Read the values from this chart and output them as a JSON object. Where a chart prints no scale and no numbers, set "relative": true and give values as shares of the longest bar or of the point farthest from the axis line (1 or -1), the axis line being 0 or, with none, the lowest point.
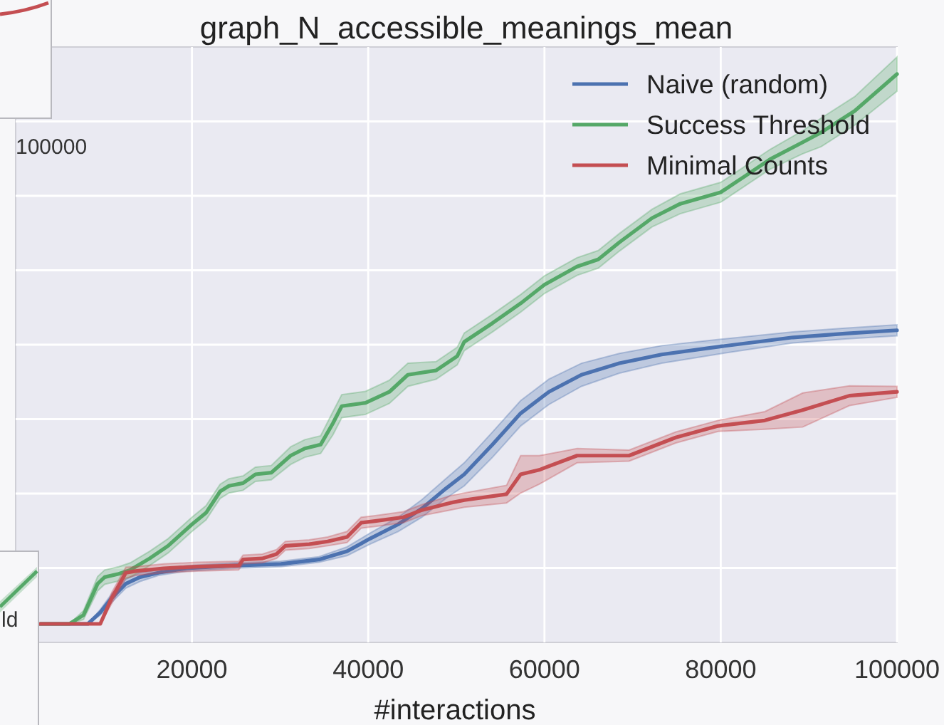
{
  "chart_data": {
    "type": "line",
    "title": "graph_N_accessible_meanings_mean",
    "xlabel": "#interactions",
    "relative": true,
    "xlim": [
      0,
      100000
    ],
    "xticks": [
      20000,
      40000,
      60000,
      80000,
      100000
    ],
    "grid": true,
    "legend": "top right",
    "annotations": [
      "100000",
      "ld"
    ],
    "series": [
      {
        "name": "Naive (random)",
        "color": "#4c72b0",
        "x": [
          2800,
          8200,
          9600,
          10900,
          12500,
          14100,
          16200,
          19400,
          24800,
          30100,
          34400,
          37600,
          40200,
          43400,
          46100,
          48800,
          50900,
          54100,
          57300,
          60500,
          64200,
          68500,
          73300,
          80200,
          88200,
          94100,
          100000
        ],
        "values": [
          0,
          0,
          0.021,
          0.047,
          0.073,
          0.085,
          0.093,
          0.101,
          0.106,
          0.109,
          0.117,
          0.132,
          0.155,
          0.181,
          0.21,
          0.246,
          0.272,
          0.326,
          0.383,
          0.422,
          0.453,
          0.474,
          0.49,
          0.505,
          0.521,
          0.528,
          0.534
        ],
        "lower": [
          0,
          0,
          0.016,
          0.039,
          0.065,
          0.077,
          0.088,
          0.096,
          0.101,
          0.104,
          0.112,
          0.124,
          0.145,
          0.168,
          0.194,
          0.228,
          0.251,
          0.303,
          0.36,
          0.399,
          0.432,
          0.456,
          0.474,
          0.492,
          0.511,
          0.518,
          0.524
        ],
        "upper": [
          0,
          0,
          0.026,
          0.055,
          0.081,
          0.093,
          0.098,
          0.106,
          0.111,
          0.114,
          0.122,
          0.14,
          0.165,
          0.194,
          0.226,
          0.264,
          0.293,
          0.349,
          0.406,
          0.445,
          0.474,
          0.492,
          0.506,
          0.518,
          0.531,
          0.538,
          0.544
        ]
      },
      {
        "name": "Success Threshold",
        "color": "#55a868",
        "x": [
          2800,
          6100,
          7700,
          9300,
          10100,
          11700,
          13000,
          15200,
          17300,
          20000,
          21600,
          23200,
          24200,
          25800,
          27200,
          29000,
          31200,
          32800,
          34600,
          36000,
          37000,
          39700,
          42400,
          44500,
          47700,
          50100,
          50900,
          54100,
          57300,
          60000,
          63700,
          66100,
          68500,
          72200,
          75400,
          80000,
          82900,
          85600,
          89300,
          91400,
          95200,
          100000
        ],
        "values": [
          0,
          0,
          0.016,
          0.073,
          0.085,
          0.091,
          0.098,
          0.119,
          0.142,
          0.181,
          0.202,
          0.241,
          0.251,
          0.256,
          0.272,
          0.275,
          0.306,
          0.319,
          0.326,
          0.365,
          0.396,
          0.402,
          0.422,
          0.453,
          0.461,
          0.487,
          0.513,
          0.547,
          0.583,
          0.617,
          0.65,
          0.663,
          0.694,
          0.738,
          0.764,
          0.785,
          0.816,
          0.845,
          0.876,
          0.894,
          0.933,
          1
        ],
        "lower": [
          0,
          0,
          0.008,
          0.06,
          0.072,
          0.078,
          0.085,
          0.106,
          0.129,
          0.168,
          0.189,
          0.228,
          0.238,
          0.243,
          0.259,
          0.262,
          0.29,
          0.303,
          0.31,
          0.344,
          0.375,
          0.381,
          0.401,
          0.432,
          0.445,
          0.471,
          0.497,
          0.531,
          0.567,
          0.601,
          0.634,
          0.647,
          0.678,
          0.722,
          0.746,
          0.767,
          0.798,
          0.827,
          0.855,
          0.868,
          0.907,
          0.969
        ],
        "upper": [
          0,
          0,
          0.024,
          0.086,
          0.098,
          0.104,
          0.111,
          0.132,
          0.155,
          0.194,
          0.215,
          0.254,
          0.264,
          0.269,
          0.285,
          0.288,
          0.322,
          0.335,
          0.342,
          0.386,
          0.417,
          0.423,
          0.443,
          0.474,
          0.477,
          0.503,
          0.529,
          0.563,
          0.599,
          0.633,
          0.666,
          0.679,
          0.71,
          0.754,
          0.782,
          0.803,
          0.834,
          0.863,
          0.897,
          0.92,
          0.959,
          1.031
        ]
      },
      {
        "name": "Minimal Counts",
        "color": "#c44e52",
        "x": [
          2800,
          9600,
          10900,
          12500,
          13600,
          16800,
          20500,
          25300,
          25800,
          28000,
          29600,
          30600,
          33300,
          35400,
          37600,
          39200,
          40800,
          44000,
          46100,
          49300,
          50900,
          55700,
          57300,
          59400,
          63700,
          69600,
          74900,
          79700,
          85000,
          89300,
          94600,
          100000
        ],
        "values": [
          0,
          0,
          0.047,
          0.093,
          0.096,
          0.101,
          0.104,
          0.106,
          0.117,
          0.119,
          0.127,
          0.142,
          0.145,
          0.15,
          0.158,
          0.184,
          0.187,
          0.194,
          0.207,
          0.22,
          0.225,
          0.236,
          0.272,
          0.28,
          0.306,
          0.306,
          0.339,
          0.36,
          0.37,
          0.389,
          0.415,
          0.422
        ],
        "lower": [
          0,
          0,
          0.037,
          0.083,
          0.088,
          0.093,
          0.096,
          0.098,
          0.109,
          0.111,
          0.119,
          0.134,
          0.137,
          0.142,
          0.148,
          0.174,
          0.177,
          0.184,
          0.197,
          0.207,
          0.212,
          0.22,
          0.238,
          0.254,
          0.293,
          0.296,
          0.329,
          0.35,
          0.354,
          0.358,
          0.397,
          0.412
        ],
        "upper": [
          0,
          0,
          0.057,
          0.103,
          0.104,
          0.109,
          0.112,
          0.114,
          0.125,
          0.127,
          0.135,
          0.15,
          0.153,
          0.158,
          0.168,
          0.194,
          0.197,
          0.204,
          0.217,
          0.233,
          0.238,
          0.252,
          0.306,
          0.306,
          0.319,
          0.316,
          0.349,
          0.37,
          0.386,
          0.42,
          0.433,
          0.432
        ]
      }
    ]
  }
}
